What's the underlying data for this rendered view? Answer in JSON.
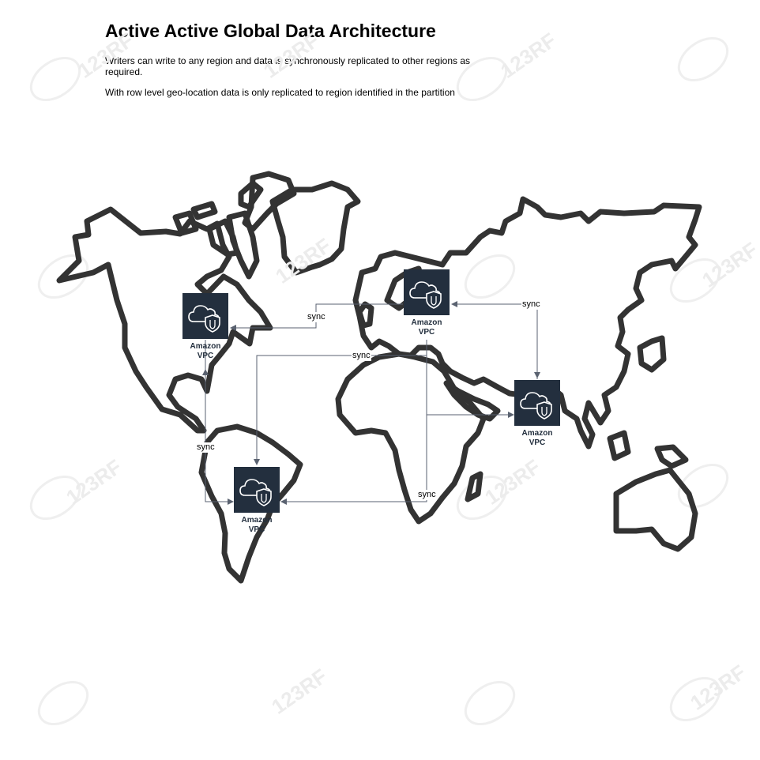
{
  "title": "Active Active Global Data Architecture",
  "descriptions": [
    "Writers can write to any region and data is synchronously replicated to other regions as required.",
    "With row level geo-location data is only replicated to region identified in the partition"
  ],
  "nodes": [
    {
      "id": "na",
      "label_line1": "Amazon",
      "label_line2": "VPC",
      "icon": "vpc-cloud-shield-icon"
    },
    {
      "id": "eu",
      "label_line1": "Amazon",
      "label_line2": "VPC",
      "icon": "vpc-cloud-shield-icon"
    },
    {
      "id": "as",
      "label_line1": "Amazon",
      "label_line2": "VPC",
      "icon": "vpc-cloud-shield-icon"
    },
    {
      "id": "sa",
      "label_line1": "Amazon",
      "label_line2": "VPC",
      "icon": "vpc-cloud-shield-icon"
    }
  ],
  "edges": [
    {
      "from": "eu",
      "to": "na",
      "label": "sync"
    },
    {
      "from": "eu",
      "to": "sa",
      "label": "sync"
    },
    {
      "from": "sa",
      "to": "na",
      "label": "sync"
    },
    {
      "from": "eu",
      "to": "sa",
      "label": "sync"
    },
    {
      "from": "as",
      "to": "eu",
      "label": "sync"
    }
  ],
  "watermark": "123RF",
  "colors": {
    "map_stroke": "#333333",
    "vpc_fill": "#232f3e",
    "arrow": "#5a6270",
    "watermark": "#ececec"
  }
}
